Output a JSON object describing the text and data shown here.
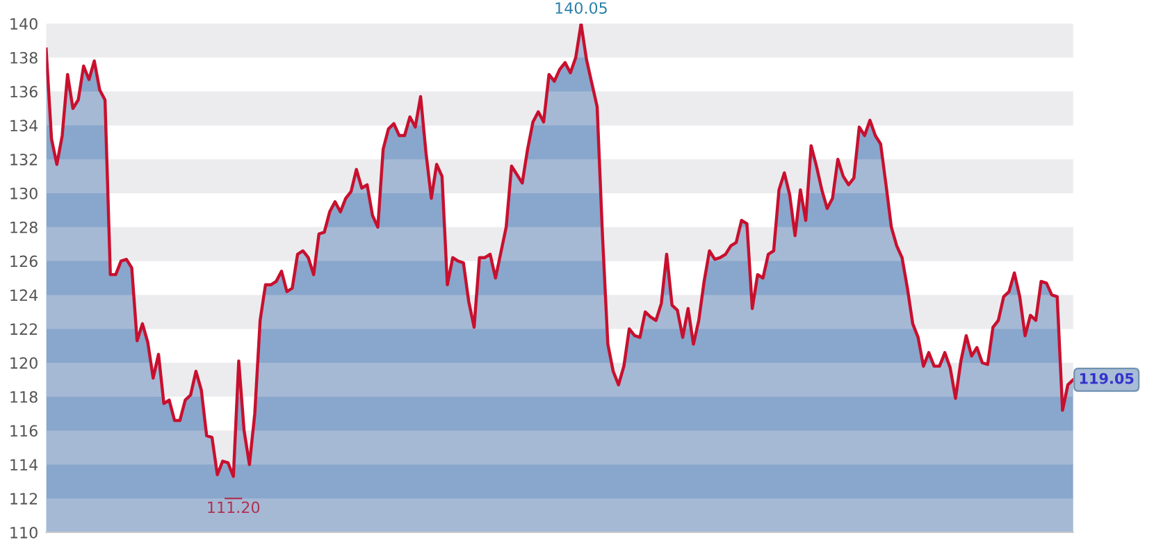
{
  "chart_data": {
    "type": "area",
    "categories": [
      null,
      null,
      null,
      null,
      null,
      null,
      null,
      null,
      null,
      null,
      null,
      null,
      null,
      null,
      null,
      null,
      null,
      null,
      null,
      null,
      null,
      null,
      null,
      null,
      null,
      null,
      null,
      null,
      null,
      null,
      null,
      null,
      null,
      null,
      null,
      null,
      null,
      null,
      null,
      null,
      null,
      null,
      null,
      null,
      null,
      null,
      null,
      null,
      null,
      null,
      null,
      null,
      null,
      null,
      null,
      null,
      null,
      null,
      null,
      null,
      null,
      null,
      null,
      null,
      null,
      null,
      null,
      null,
      null,
      null,
      null,
      null,
      null,
      null,
      null,
      null,
      null,
      null,
      null,
      null,
      null,
      null,
      null,
      null,
      null,
      null,
      null,
      null,
      null,
      null,
      null,
      null,
      null,
      null,
      null,
      null,
      null,
      null,
      null,
      null,
      null,
      null,
      null,
      null,
      null,
      null,
      null,
      null,
      null,
      null,
      null,
      null,
      null,
      null,
      null,
      null,
      null,
      null,
      null,
      null,
      null,
      null,
      null,
      null,
      null,
      null,
      null,
      null,
      null,
      null,
      null,
      null,
      null,
      null,
      null,
      null,
      null,
      null,
      null,
      null,
      null,
      null,
      null,
      null,
      null,
      null,
      null,
      null,
      null,
      null,
      null,
      null,
      null,
      null,
      null,
      null,
      null,
      null,
      null,
      null,
      null,
      null,
      null,
      null,
      null,
      null,
      null,
      null,
      null,
      null,
      null,
      null,
      null,
      null,
      null,
      null,
      null,
      null,
      null,
      null,
      null,
      null,
      null,
      null,
      null,
      null,
      null,
      null,
      null,
      null,
      null,
      null,
      null
    ],
    "series": [
      {
        "type": "line",
        "color": "#c8102e",
        "values": [
          138.5,
          133.2,
          131.7,
          133.4,
          137.0,
          135.0,
          135.5,
          137.5,
          136.7,
          137.8,
          136.1,
          135.5,
          125.2,
          125.2,
          126.0,
          126.1,
          125.6,
          121.3,
          122.3,
          121.2,
          119.1,
          120.5,
          117.6,
          117.8,
          116.6,
          116.6,
          117.8,
          118.1,
          119.5,
          118.4,
          115.7,
          115.6,
          113.4,
          114.2,
          114.1,
          113.3,
          120.1,
          116.0,
          114.0,
          117.0,
          122.5,
          124.6,
          124.6,
          124.8,
          125.4,
          124.2,
          124.4,
          126.4,
          126.6,
          126.2,
          125.2,
          127.6,
          127.7,
          128.9,
          129.5,
          128.9,
          129.7,
          130.1,
          131.4,
          130.3,
          130.5,
          128.7,
          128.0,
          132.6,
          133.8,
          134.1,
          133.4,
          133.4,
          134.5,
          133.9,
          135.7,
          132.4,
          129.7,
          131.7,
          131.0,
          124.6,
          126.2,
          126.0,
          125.9,
          123.6,
          122.1,
          126.2,
          126.2,
          126.4,
          125.0,
          126.5,
          128.0,
          131.6,
          131.1,
          130.6,
          132.6,
          134.2,
          134.8,
          134.2,
          137.0,
          136.6,
          137.3,
          137.7,
          137.1,
          138.0,
          140.0,
          137.9,
          136.5,
          135.1,
          127.5,
          121.1,
          119.5,
          118.7,
          119.8,
          122.0,
          121.6,
          121.5,
          123.0,
          122.7,
          122.5,
          123.5,
          126.4,
          123.4,
          123.1,
          121.5,
          123.2,
          121.1,
          122.5,
          124.8,
          126.6,
          126.1,
          126.2,
          126.4,
          126.9,
          127.1,
          128.4,
          128.2,
          123.2,
          125.2,
          125.0,
          126.4,
          126.6,
          130.2,
          131.2,
          129.9,
          127.5,
          130.2,
          128.4,
          132.8,
          131.6,
          130.2,
          129.1,
          129.7,
          132.0,
          131.0,
          130.5,
          130.9,
          133.9,
          133.4,
          134.3,
          133.4,
          132.9,
          130.5,
          128.0,
          126.9,
          126.2,
          124.4,
          122.3,
          121.5,
          119.8,
          120.6,
          119.8,
          119.8,
          120.6,
          119.7,
          117.9,
          120.1,
          121.6,
          120.4,
          120.9,
          120.0,
          119.9,
          122.1,
          122.5,
          123.9,
          124.2,
          125.3,
          123.9,
          121.6,
          122.8,
          122.5,
          124.8,
          124.7,
          124.0,
          123.9,
          117.2,
          118.7,
          119.0
        ]
      },
      {
        "color": "#7c9cc6",
        "values": [
          138.5,
          133.2,
          131.7,
          133.4,
          137.0,
          135.0,
          135.5,
          137.5,
          136.7,
          137.8,
          136.1,
          135.5,
          125.2,
          125.2,
          126.0,
          126.1,
          125.6,
          121.3,
          122.3,
          121.2,
          119.1,
          120.5,
          117.6,
          117.8,
          116.6,
          116.6,
          117.8,
          118.1,
          119.5,
          118.4,
          115.7,
          115.6,
          113.4,
          114.2,
          114.1,
          113.3,
          120.1,
          116.0,
          114.0,
          117.0,
          122.5,
          124.6,
          124.6,
          124.8,
          125.4,
          124.2,
          124.4,
          126.4,
          126.6,
          126.2,
          125.2,
          127.6,
          127.7,
          128.9,
          129.5,
          128.9,
          129.7,
          130.1,
          131.4,
          130.3,
          130.5,
          128.7,
          128.0,
          132.6,
          133.8,
          134.1,
          133.4,
          133.4,
          134.5,
          133.9,
          135.7,
          132.4,
          129.7,
          131.7,
          131.0,
          124.6,
          126.2,
          126.0,
          125.9,
          123.6,
          122.1,
          126.2,
          126.2,
          126.4,
          125.0,
          126.5,
          128.0,
          131.6,
          131.1,
          130.6,
          132.6,
          134.2,
          134.8,
          134.2,
          137.0,
          136.6,
          137.3,
          137.7,
          137.1,
          138.0,
          140.0,
          137.9,
          136.5,
          135.1,
          127.5,
          121.1,
          119.5,
          118.7,
          119.8,
          122.0,
          121.6,
          121.5,
          123.0,
          122.7,
          122.5,
          123.5,
          126.4,
          123.4,
          123.1,
          121.5,
          123.2,
          121.1,
          122.5,
          124.8,
          126.6,
          126.1,
          126.2,
          126.4,
          126.9,
          127.1,
          128.4,
          128.2,
          123.2,
          125.2,
          125.0,
          126.4,
          126.6,
          130.2,
          131.2,
          129.9,
          127.5,
          130.2,
          128.4,
          132.8,
          131.6,
          130.2,
          129.1,
          129.7,
          132.0,
          131.0,
          130.5,
          130.9,
          133.9,
          133.4,
          134.3,
          133.4,
          132.9,
          130.5,
          128.0,
          126.9,
          126.2,
          124.4,
          122.3,
          121.5,
          119.8,
          120.6,
          119.8,
          119.8,
          120.6,
          119.7,
          117.9,
          120.1,
          121.6,
          120.4,
          120.9,
          120.0,
          119.9,
          122.1,
          122.5,
          123.9,
          124.2,
          125.3,
          123.9,
          121.6,
          122.8,
          122.5,
          124.8,
          124.7,
          124.0,
          123.9,
          117.2,
          118.7,
          119.0
        ]
      }
    ],
    "ylim": [
      110,
      140
    ],
    "yticks": [
      110,
      112,
      114,
      116,
      118,
      120,
      122,
      124,
      126,
      128,
      130,
      132,
      134,
      136,
      138,
      140
    ],
    "bands": [
      {
        "axis": "y",
        "from": 110,
        "to": 112,
        "color": "#ececee"
      },
      {
        "axis": "y",
        "from": 114,
        "to": 116,
        "color": "#ececee"
      },
      {
        "axis": "y",
        "from": 118,
        "to": 120,
        "color": "#ececee"
      },
      {
        "axis": "y",
        "from": 122,
        "to": 124,
        "color": "#ececee"
      },
      {
        "axis": "y",
        "from": 126,
        "to": 128,
        "color": "#ececee"
      },
      {
        "axis": "y",
        "from": 130,
        "to": 132,
        "color": "#ececee"
      },
      {
        "axis": "y",
        "from": 134,
        "to": 136,
        "color": "#ececee"
      },
      {
        "axis": "y",
        "from": 138,
        "to": 140,
        "color": "#ececee"
      }
    ],
    "annotations": [
      {
        "text": "140.05",
        "y": 140.0
      },
      "111.20",
      "119.05"
    ]
  }
}
